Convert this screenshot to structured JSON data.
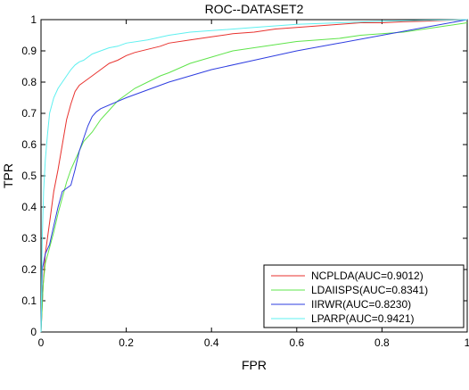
{
  "chart_data": {
    "type": "line",
    "title": "ROC--DATASET2",
    "xlabel": "FPR",
    "ylabel": "TPR",
    "xlim": [
      0,
      1
    ],
    "ylim": [
      0,
      1
    ],
    "grid": false,
    "legend_placement": "bottom-right",
    "x_ticks": [
      "0",
      "0.2",
      "0.4",
      "0.6",
      "0.8",
      "1"
    ],
    "y_ticks": [
      "0",
      "0.1",
      "0.2",
      "0.3",
      "0.4",
      "0.5",
      "0.6",
      "0.7",
      "0.8",
      "0.9",
      "1"
    ],
    "series": [
      {
        "name": "NCPLDA(AUC=0.9012)",
        "color": "#e8322e",
        "x": [
          0,
          0.005,
          0.01,
          0.015,
          0.02,
          0.03,
          0.04,
          0.05,
          0.06,
          0.07,
          0.08,
          0.09,
          0.1,
          0.12,
          0.14,
          0.16,
          0.18,
          0.2,
          0.22,
          0.25,
          0.28,
          0.3,
          0.35,
          0.4,
          0.45,
          0.5,
          0.55,
          0.6,
          0.65,
          0.7,
          0.75,
          0.8,
          0.85,
          0.9,
          0.95,
          1
        ],
        "y": [
          0,
          0.15,
          0.25,
          0.3,
          0.35,
          0.45,
          0.52,
          0.6,
          0.68,
          0.73,
          0.77,
          0.79,
          0.8,
          0.82,
          0.84,
          0.86,
          0.87,
          0.885,
          0.895,
          0.905,
          0.915,
          0.925,
          0.935,
          0.945,
          0.955,
          0.96,
          0.97,
          0.975,
          0.98,
          0.985,
          0.99,
          0.99,
          0.993,
          0.995,
          0.998,
          1.0
        ]
      },
      {
        "name": "LDAIISPS(AUC=0.8341)",
        "color": "#5fe44b",
        "x": [
          0,
          0.005,
          0.01,
          0.02,
          0.03,
          0.04,
          0.05,
          0.06,
          0.07,
          0.08,
          0.09,
          0.1,
          0.12,
          0.14,
          0.16,
          0.18,
          0.2,
          0.22,
          0.25,
          0.28,
          0.3,
          0.35,
          0.4,
          0.45,
          0.5,
          0.55,
          0.6,
          0.65,
          0.7,
          0.75,
          0.8,
          0.85,
          0.9,
          0.95,
          1
        ],
        "y": [
          0,
          0.15,
          0.22,
          0.27,
          0.32,
          0.38,
          0.43,
          0.48,
          0.52,
          0.55,
          0.58,
          0.61,
          0.64,
          0.68,
          0.71,
          0.74,
          0.76,
          0.78,
          0.8,
          0.82,
          0.83,
          0.86,
          0.88,
          0.9,
          0.91,
          0.92,
          0.93,
          0.935,
          0.94,
          0.95,
          0.955,
          0.96,
          0.97,
          0.98,
          0.99
        ]
      },
      {
        "name": "IIRWR(AUC=0.8230)",
        "color": "#2e3de0",
        "x": [
          0,
          0.003,
          0.01,
          0.02,
          0.03,
          0.04,
          0.05,
          0.06,
          0.07,
          0.08,
          0.09,
          0.1,
          0.11,
          0.12,
          0.13,
          0.14,
          0.2,
          0.3,
          0.4,
          0.5,
          0.6,
          0.7,
          0.8,
          0.9,
          1
        ],
        "y": [
          0,
          0.2,
          0.25,
          0.28,
          0.34,
          0.4,
          0.45,
          0.46,
          0.47,
          0.52,
          0.58,
          0.62,
          0.66,
          0.69,
          0.705,
          0.715,
          0.75,
          0.8,
          0.84,
          0.87,
          0.9,
          0.925,
          0.95,
          0.975,
          1.0
        ]
      },
      {
        "name": "LPARP(AUC=0.9421)",
        "color": "#5ff0f0",
        "x": [
          0,
          0.003,
          0.006,
          0.01,
          0.015,
          0.02,
          0.03,
          0.04,
          0.05,
          0.06,
          0.07,
          0.08,
          0.09,
          0.1,
          0.12,
          0.14,
          0.16,
          0.18,
          0.2,
          0.25,
          0.3,
          0.35,
          0.4,
          0.5,
          0.6,
          0.7,
          0.8,
          0.9,
          1
        ],
        "y": [
          0,
          0.3,
          0.45,
          0.55,
          0.63,
          0.7,
          0.75,
          0.78,
          0.8,
          0.82,
          0.84,
          0.855,
          0.865,
          0.87,
          0.89,
          0.9,
          0.91,
          0.915,
          0.925,
          0.935,
          0.95,
          0.96,
          0.965,
          0.975,
          0.985,
          0.99,
          0.995,
          0.998,
          1.0
        ]
      }
    ]
  }
}
